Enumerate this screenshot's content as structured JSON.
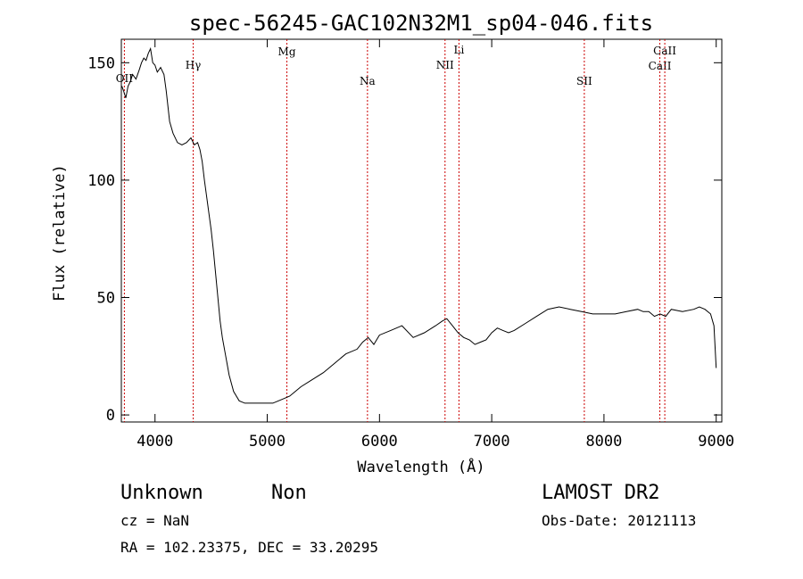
{
  "chart_data": {
    "type": "line",
    "title": "spec-56245-GAC102N32M1_sp04-046.fits",
    "xlabel": "Wavelength (Å)",
    "ylabel": "Flux (relative)",
    "xlim": [
      3700,
      9050
    ],
    "ylim": [
      -3,
      160
    ],
    "x_ticks": [
      4000,
      5000,
      6000,
      7000,
      8000,
      9000
    ],
    "y_ticks": [
      0,
      50,
      100,
      150
    ],
    "grid": false,
    "line_color": "#000000",
    "marker_color": "#cc0000",
    "series": [
      {
        "x": [
          3705,
          3720,
          3740,
          3760,
          3780,
          3800,
          3830,
          3860,
          3880,
          3900,
          3920,
          3940,
          3960,
          3980,
          4000,
          4020,
          4050,
          4080,
          4100,
          4130,
          4160,
          4200,
          4240,
          4280,
          4320,
          4350,
          4380,
          4400,
          4420,
          4440,
          4460,
          4480,
          4500,
          4520,
          4540,
          4560,
          4580,
          4600,
          4630,
          4660,
          4700,
          4750,
          4800,
          4850,
          4900,
          4950,
          5000,
          5050,
          5100,
          5150,
          5200,
          5250,
          5300,
          5400,
          5500,
          5600,
          5700,
          5800,
          5850,
          5900,
          5950,
          6000,
          6100,
          6200,
          6300,
          6400,
          6500,
          6560,
          6600,
          6650,
          6700,
          6750,
          6800,
          6850,
          6900,
          6950,
          7000,
          7050,
          7100,
          7150,
          7200,
          7300,
          7400,
          7500,
          7600,
          7700,
          7800,
          7900,
          8000,
          8100,
          8200,
          8300,
          8350,
          8400,
          8450,
          8500,
          8550,
          8600,
          8700,
          8800,
          8850,
          8900,
          8950,
          8980,
          9000
        ],
        "y": [
          140,
          138,
          135,
          140,
          142,
          145,
          143,
          147,
          150,
          152,
          151,
          154,
          156,
          150,
          149,
          146,
          148,
          145,
          138,
          125,
          120,
          116,
          115,
          116,
          118,
          115,
          116,
          113,
          108,
          100,
          93,
          86,
          79,
          70,
          60,
          50,
          40,
          33,
          25,
          17,
          10,
          6,
          5,
          5,
          5,
          5,
          5,
          5,
          6,
          7,
          8,
          10,
          12,
          15,
          18,
          22,
          26,
          28,
          31,
          33,
          30,
          34,
          36,
          38,
          33,
          35,
          38,
          40,
          41,
          38,
          35,
          33,
          32,
          30,
          31,
          32,
          35,
          37,
          36,
          35,
          36,
          39,
          42,
          45,
          46,
          45,
          44,
          43,
          43,
          43,
          44,
          45,
          44,
          44,
          42,
          43,
          42,
          45,
          44,
          45,
          46,
          45,
          43,
          38,
          20
        ]
      }
    ],
    "markers": [
      {
        "label": "OII",
        "x": 3727
      },
      {
        "label": "Hγ",
        "x": 4340
      },
      {
        "label": "Mg",
        "x": 5175
      },
      {
        "label": "Na",
        "x": 5893
      },
      {
        "label": "NII",
        "x": 6584
      },
      {
        "label": "Li",
        "x": 6708
      },
      {
        "label": "SII",
        "x": 7825
      },
      {
        "label": "CaII",
        "x": 8498
      },
      {
        "label": "CaII",
        "x": 8542
      }
    ]
  },
  "info": {
    "class": "Unknown",
    "subclass": "Non",
    "survey": "LAMOST DR2",
    "cz": "cz = NaN",
    "obs_date": "Obs-Date: 20121113",
    "coords": "RA = 102.23375, DEC =  33.20295"
  }
}
